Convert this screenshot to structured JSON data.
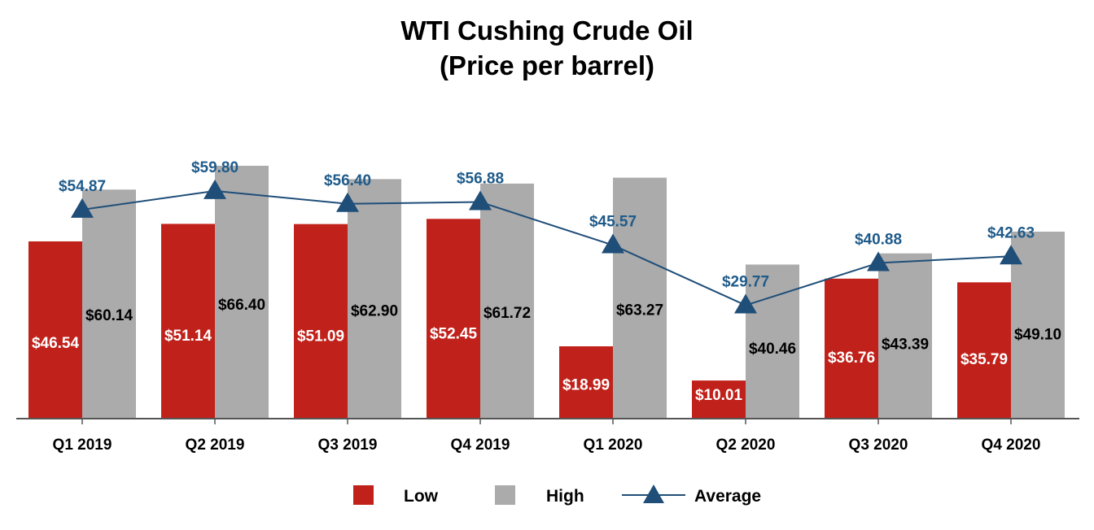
{
  "chart_data": {
    "type": "bar",
    "title": "WTI Cushing Crude Oil",
    "subtitle": "(Price per barrel)",
    "categories": [
      "Q1 2019",
      "Q2 2019",
      "Q3 2019",
      "Q4 2019",
      "Q1 2020",
      "Q2 2020",
      "Q3 2020",
      "Q4 2020"
    ],
    "series": [
      {
        "name": "Low",
        "kind": "bar",
        "color": "#c0211a",
        "values": [
          46.54,
          51.14,
          51.09,
          52.45,
          18.99,
          10.01,
          36.76,
          35.79
        ],
        "labels": [
          "$46.54",
          "$51.14",
          "$51.09",
          "$52.45",
          "$18.99",
          "$10.01",
          "$36.76",
          "$35.79"
        ]
      },
      {
        "name": "High",
        "kind": "bar",
        "color": "#ababab",
        "values": [
          60.14,
          66.4,
          62.9,
          61.72,
          63.27,
          40.46,
          43.39,
          49.1
        ],
        "labels": [
          "$60.14",
          "$66.40",
          "$62.90",
          "$61.72",
          "$63.27",
          "$40.46",
          "$43.39",
          "$49.10"
        ]
      },
      {
        "name": "Average",
        "kind": "line",
        "marker": "triangle",
        "color": "#1f4e79",
        "values": [
          54.87,
          59.8,
          56.4,
          56.88,
          45.57,
          29.77,
          40.88,
          42.63
        ],
        "labels": [
          "$54.87",
          "$59.80",
          "$56.40",
          "$56.88",
          "$45.57",
          "$29.77",
          "$40.88",
          "$42.63"
        ]
      }
    ],
    "ylim": [
      0,
      70
    ],
    "grid": false,
    "legend_position": "bottom"
  }
}
